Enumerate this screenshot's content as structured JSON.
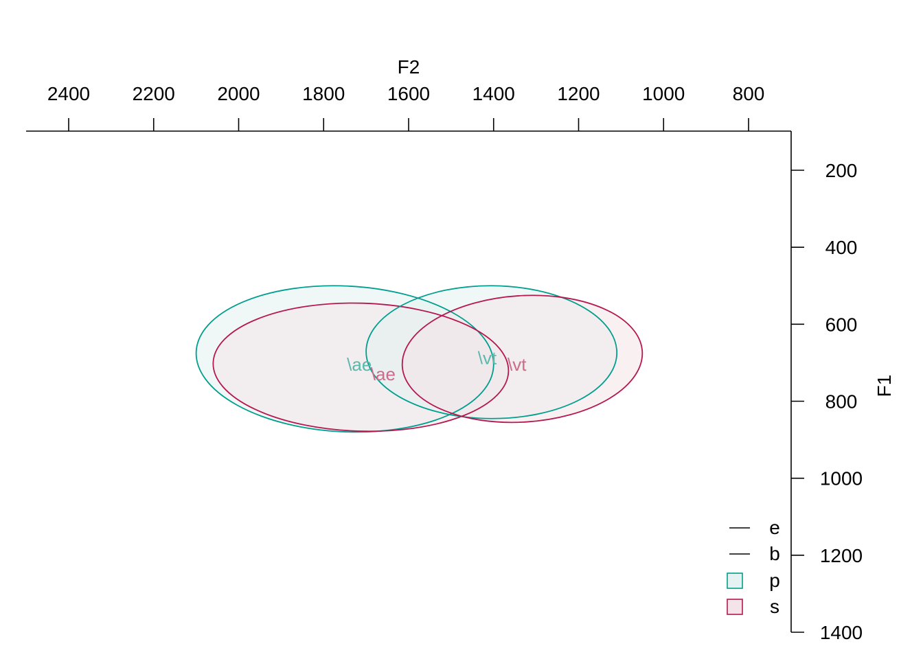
{
  "chart_data": {
    "type": "scatter",
    "xlabel": "F2",
    "ylabel": "F1",
    "x_axis": {
      "position": "top",
      "reversed": true,
      "ticks": [
        2400,
        2200,
        2000,
        1800,
        1600,
        1400,
        1200,
        1000,
        800
      ],
      "tick_labels": [
        "2400",
        "2200",
        "2000",
        "1800",
        "1600",
        "1400",
        "1200",
        "1000",
        "800"
      ],
      "range": [
        2500,
        700
      ]
    },
    "y_axis": {
      "position": "right",
      "reversed": true,
      "ticks": [
        200,
        400,
        600,
        800,
        1000,
        1200,
        1400
      ],
      "tick_labels": [
        "200",
        "400",
        "600",
        "800",
        "1000",
        "1200",
        "1400"
      ],
      "range": [
        100,
        1400
      ]
    },
    "grid": false,
    "legend": {
      "placement": "bottom-right",
      "entries": [
        {
          "label": "e",
          "symbol": "line"
        },
        {
          "label": "b",
          "symbol": "line"
        },
        {
          "label": "p",
          "symbol": "box",
          "group": "p"
        },
        {
          "label": "s",
          "symbol": "box",
          "group": "s"
        }
      ]
    },
    "groups": {
      "p": {
        "stroke": "#009E8E",
        "fill": "#E4F3F1",
        "text": "#5BB8AC"
      },
      "s": {
        "stroke": "#B5174F",
        "fill": "#F4E3E8",
        "text": "#CE6A8A"
      }
    },
    "series": [
      {
        "vowel": "\\ae",
        "label": "\\ae",
        "group": "p",
        "center": [
          1750,
          705
        ],
        "label_pos": [
          1716,
          705
        ],
        "ellipse": {
          "x_extent": [
            2100,
            1400
          ],
          "y_extent": [
            500,
            880
          ],
          "top_point_x": 1660,
          "bottom_point_x": 1855,
          "left_point_y": 735,
          "right_point_y": 670
        }
      },
      {
        "vowel": "\\ae",
        "label": "\\ae",
        "group": "s",
        "center": [
          1720,
          725
        ],
        "label_pos": [
          1660,
          730
        ],
        "ellipse": {
          "x_extent": [
            2060,
            1365
          ],
          "y_extent": [
            545,
            878
          ],
          "top_point_x": 1650,
          "bottom_point_x": 1790,
          "left_point_y": 745,
          "right_point_y": 700
        }
      },
      {
        "vowel": "\\vt",
        "label": "\\vt",
        "group": "p",
        "center": [
          1430,
          690
        ],
        "label_pos": [
          1415,
          688
        ],
        "ellipse": {
          "x_extent": [
            1700,
            1110
          ],
          "y_extent": [
            500,
            845
          ],
          "top_point_x": 1345,
          "bottom_point_x": 1520,
          "left_point_y": 735,
          "right_point_y": 640
        }
      },
      {
        "vowel": "\\vt",
        "label": "\\vt",
        "group": "s",
        "center": [
          1340,
          690
        ],
        "label_pos": [
          1345,
          705
        ],
        "ellipse": {
          "x_extent": [
            1615,
            1050
          ],
          "y_extent": [
            525,
            855
          ],
          "top_point_x": 1270,
          "bottom_point_x": 1500,
          "left_point_y": 735,
          "right_point_y": 625
        }
      }
    ]
  }
}
